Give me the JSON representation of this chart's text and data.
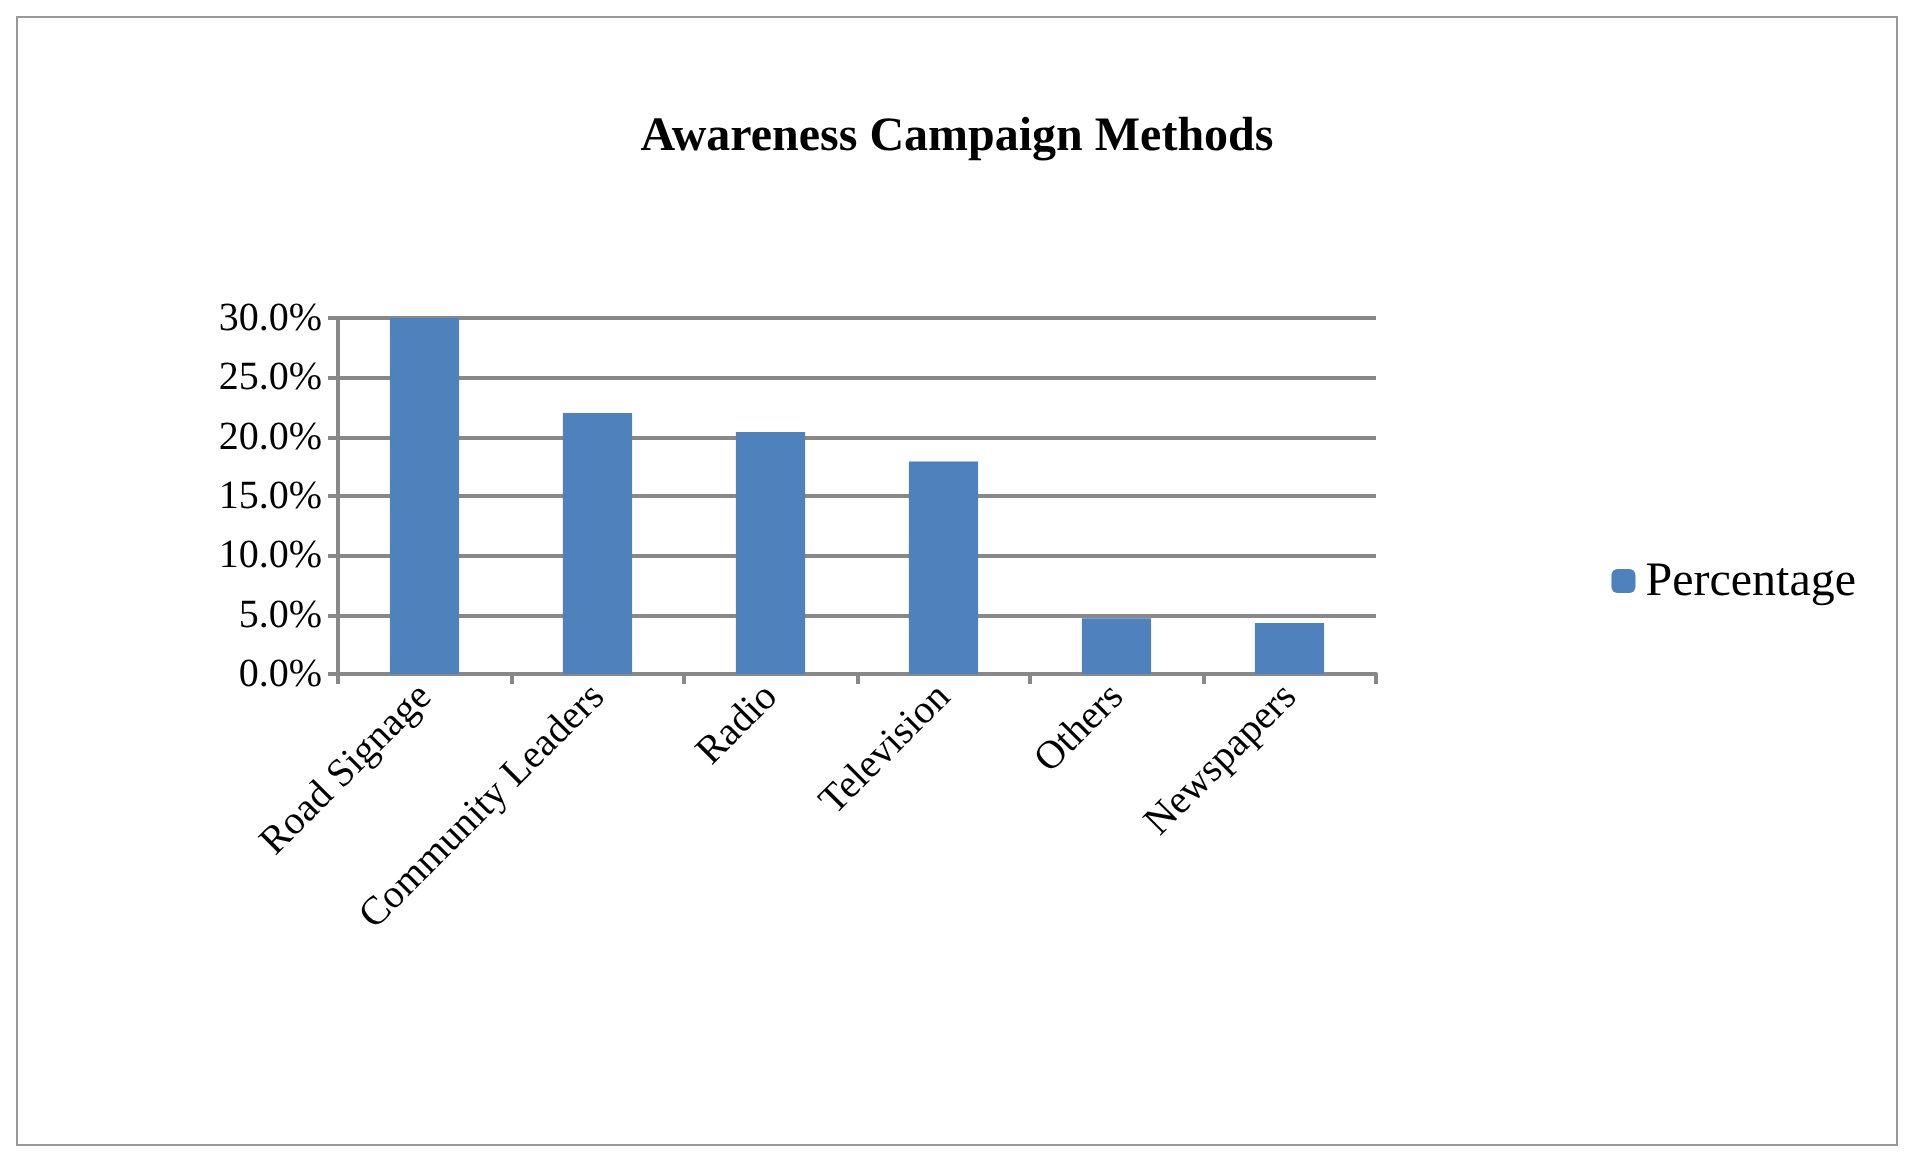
{
  "chart_data": {
    "type": "bar",
    "title": "Awareness Campaign Methods",
    "categories": [
      "Road Signage",
      "Community Leaders",
      "Radio",
      "Television",
      "Others",
      "Newspapers"
    ],
    "series": [
      {
        "name": "Percentage",
        "color": "#4f81bd",
        "values": [
          30.0,
          22.0,
          20.4,
          17.9,
          4.7,
          4.3
        ]
      }
    ],
    "ylim": [
      0,
      30
    ],
    "yticks": [
      {
        "value": 0,
        "label": "0.0%"
      },
      {
        "value": 5,
        "label": "5.0%"
      },
      {
        "value": 10,
        "label": "10.0%"
      },
      {
        "value": 15,
        "label": "15.0%"
      },
      {
        "value": 20,
        "label": "20.0%"
      },
      {
        "value": 25,
        "label": "25.0%"
      },
      {
        "value": 30,
        "label": "30.0%"
      }
    ],
    "grid": "y",
    "legend": "right"
  }
}
